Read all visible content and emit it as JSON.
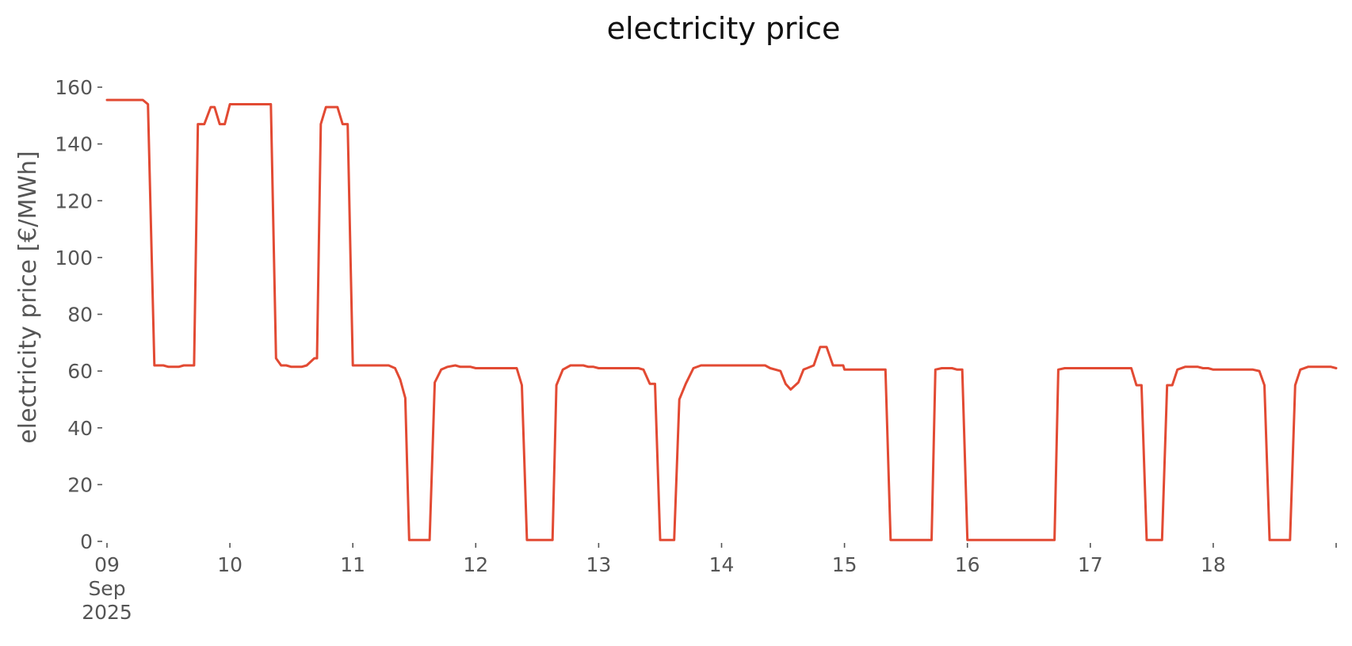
{
  "chart_data": {
    "type": "line",
    "title": "electricity price",
    "xlabel": "",
    "ylabel": "electricity price [€/MWh]",
    "xlim": [
      "2025-09-09T00:00",
      "2025-09-19T00:00"
    ],
    "ylim": [
      0,
      160
    ],
    "grid": false,
    "legend": "none",
    "x_ticks": [
      {
        "value": "2025-09-09",
        "label": "09",
        "sublabels": [
          "Sep",
          "2025"
        ]
      },
      {
        "value": "2025-09-10",
        "label": "10"
      },
      {
        "value": "2025-09-11",
        "label": "11"
      },
      {
        "value": "2025-09-12",
        "label": "12"
      },
      {
        "value": "2025-09-13",
        "label": "13"
      },
      {
        "value": "2025-09-14",
        "label": "14"
      },
      {
        "value": "2025-09-15",
        "label": "15"
      },
      {
        "value": "2025-09-16",
        "label": "16"
      },
      {
        "value": "2025-09-17",
        "label": "17"
      },
      {
        "value": "2025-09-18",
        "label": "18"
      },
      {
        "value": "2025-09-19",
        "label": ""
      }
    ],
    "y_ticks": [
      0,
      20,
      40,
      60,
      80,
      100,
      120,
      140,
      160
    ],
    "series": [
      {
        "color": "#e24a33",
        "points": [
          [
            "2025-09-09T00:00",
            155.5
          ],
          [
            "2025-09-09T07:00",
            155.5
          ],
          [
            "2025-09-09T08:00",
            154
          ],
          [
            "2025-09-09T09:15",
            62
          ],
          [
            "2025-09-09T11:00",
            62
          ],
          [
            "2025-09-09T12:00",
            61.5
          ],
          [
            "2025-09-09T14:00",
            61.5
          ],
          [
            "2025-09-09T15:00",
            62
          ],
          [
            "2025-09-09T17:00",
            62
          ],
          [
            "2025-09-09T17:45",
            147
          ],
          [
            "2025-09-09T19:00",
            147
          ],
          [
            "2025-09-09T20:15",
            153
          ],
          [
            "2025-09-09T21:00",
            153
          ],
          [
            "2025-09-09T22:00",
            147
          ],
          [
            "2025-09-09T23:00",
            147
          ],
          [
            "2025-09-10T00:00",
            154
          ],
          [
            "2025-09-10T08:00",
            154
          ],
          [
            "2025-09-10T09:00",
            64.5
          ],
          [
            "2025-09-10T10:00",
            62
          ],
          [
            "2025-09-10T11:00",
            62
          ],
          [
            "2025-09-10T12:00",
            61.5
          ],
          [
            "2025-09-10T14:00",
            61.5
          ],
          [
            "2025-09-10T15:00",
            62
          ],
          [
            "2025-09-10T16:30",
            64.5
          ],
          [
            "2025-09-10T17:00",
            64.5
          ],
          [
            "2025-09-10T17:45",
            147
          ],
          [
            "2025-09-10T18:45",
            153
          ],
          [
            "2025-09-10T21:00",
            153
          ],
          [
            "2025-09-10T22:00",
            147
          ],
          [
            "2025-09-10T23:00",
            147
          ],
          [
            "2025-09-11T00:00",
            62
          ],
          [
            "2025-09-11T07:00",
            62
          ],
          [
            "2025-09-11T08:15",
            61
          ],
          [
            "2025-09-11T09:15",
            57
          ],
          [
            "2025-09-11T10:15",
            50.5
          ],
          [
            "2025-09-11T11:00",
            0.5
          ],
          [
            "2025-09-11T15:00",
            0.5
          ],
          [
            "2025-09-11T16:00",
            56
          ],
          [
            "2025-09-11T17:15",
            60.5
          ],
          [
            "2025-09-11T18:30",
            61.5
          ],
          [
            "2025-09-11T20:00",
            62
          ],
          [
            "2025-09-11T21:00",
            61.5
          ],
          [
            "2025-09-11T23:00",
            61.5
          ],
          [
            "2025-09-12T00:00",
            61
          ],
          [
            "2025-09-12T08:00",
            61
          ],
          [
            "2025-09-12T09:00",
            55
          ],
          [
            "2025-09-12T10:00",
            0.5
          ],
          [
            "2025-09-12T15:00",
            0.5
          ],
          [
            "2025-09-12T15:45",
            55
          ],
          [
            "2025-09-12T17:00",
            60.5
          ],
          [
            "2025-09-12T18:30",
            62
          ],
          [
            "2025-09-12T21:00",
            62
          ],
          [
            "2025-09-12T22:00",
            61.5
          ],
          [
            "2025-09-12T23:00",
            61.5
          ],
          [
            "2025-09-13T00:00",
            61
          ],
          [
            "2025-09-13T07:45",
            61
          ],
          [
            "2025-09-13T08:45",
            60.5
          ],
          [
            "2025-09-13T10:00",
            55.5
          ],
          [
            "2025-09-13T11:00",
            55.5
          ],
          [
            "2025-09-13T12:00",
            0.5
          ],
          [
            "2025-09-13T14:45",
            0.5
          ],
          [
            "2025-09-13T15:45",
            50
          ],
          [
            "2025-09-13T17:00",
            55.5
          ],
          [
            "2025-09-13T18:30",
            61
          ],
          [
            "2025-09-13T20:00",
            62
          ],
          [
            "2025-09-14T08:30",
            62
          ],
          [
            "2025-09-14T09:30",
            61
          ],
          [
            "2025-09-14T11:30",
            60
          ],
          [
            "2025-09-14T12:30",
            55.5
          ],
          [
            "2025-09-14T13:30",
            53.5
          ],
          [
            "2025-09-14T15:00",
            56
          ],
          [
            "2025-09-14T16:00",
            60.5
          ],
          [
            "2025-09-14T18:00",
            62
          ],
          [
            "2025-09-14T19:15",
            68.5
          ],
          [
            "2025-09-14T20:30",
            68.5
          ],
          [
            "2025-09-14T21:45",
            62
          ],
          [
            "2025-09-14T23:45",
            62
          ],
          [
            "2025-09-15T00:00",
            60.5
          ],
          [
            "2025-09-15T08:00",
            60.5
          ],
          [
            "2025-09-15T09:00",
            0.5
          ],
          [
            "2025-09-15T17:00",
            0.5
          ],
          [
            "2025-09-15T17:45",
            60.5
          ],
          [
            "2025-09-15T19:00",
            61
          ],
          [
            "2025-09-15T21:00",
            61
          ],
          [
            "2025-09-15T22:00",
            60.5
          ],
          [
            "2025-09-15T23:00",
            60.5
          ],
          [
            "2025-09-16T00:00",
            0.5
          ],
          [
            "2025-09-16T17:00",
            0.5
          ],
          [
            "2025-09-16T17:45",
            60.5
          ],
          [
            "2025-09-16T19:00",
            61
          ],
          [
            "2025-09-17T08:00",
            61
          ],
          [
            "2025-09-17T09:00",
            55
          ],
          [
            "2025-09-17T10:00",
            55
          ],
          [
            "2025-09-17T11:00",
            0.5
          ],
          [
            "2025-09-17T14:00",
            0.5
          ],
          [
            "2025-09-17T15:00",
            55
          ],
          [
            "2025-09-17T16:00",
            55
          ],
          [
            "2025-09-17T17:00",
            60.5
          ],
          [
            "2025-09-17T18:30",
            61.5
          ],
          [
            "2025-09-17T21:00",
            61.5
          ],
          [
            "2025-09-17T22:00",
            61
          ],
          [
            "2025-09-17T23:00",
            61
          ],
          [
            "2025-09-18T00:00",
            60.5
          ],
          [
            "2025-09-18T07:45",
            60.5
          ],
          [
            "2025-09-18T09:00",
            60
          ],
          [
            "2025-09-18T10:00",
            55
          ],
          [
            "2025-09-18T11:00",
            0.5
          ],
          [
            "2025-09-18T15:00",
            0.5
          ],
          [
            "2025-09-18T16:00",
            55
          ],
          [
            "2025-09-18T17:00",
            60.5
          ],
          [
            "2025-09-18T18:30",
            61.5
          ],
          [
            "2025-09-18T22:00",
            61.5
          ],
          [
            "2025-09-18T23:00",
            61.5
          ],
          [
            "2025-09-19T00:00",
            61
          ]
        ]
      }
    ]
  }
}
